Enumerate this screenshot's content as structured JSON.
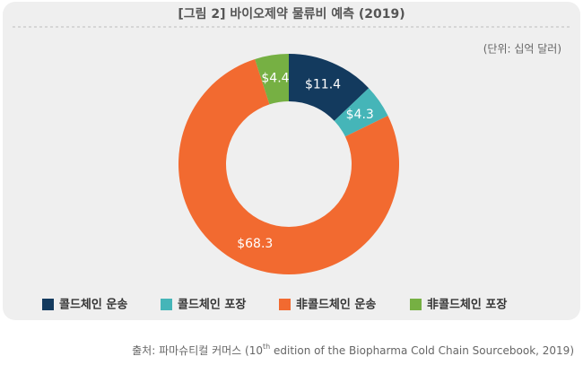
{
  "chart_data": {
    "type": "pie",
    "title": "[그림 2] 바이오제약 물류비 예측 (2019)",
    "subtitle": "(단위: 십억 달러)",
    "categories": [
      "콜드체인 운송",
      "콜드체인 포장",
      "非콜드체인 운송",
      "非콜드체인 포장"
    ],
    "values": [
      11.4,
      4.3,
      68.3,
      4.4
    ],
    "value_labels": [
      "$11.4",
      "$4.3",
      "$68.3",
      "$4.4"
    ],
    "colors": [
      "#133a5e",
      "#45b5b8",
      "#f26a30",
      "#76b043"
    ],
    "legend": "bottom",
    "source": {
      "prefix": "출처: 파마슈티컬 커머스 (10",
      "superscript": "th",
      "suffix": " edition of the Biopharma Cold Chain Sourcebook, 2019)"
    }
  }
}
